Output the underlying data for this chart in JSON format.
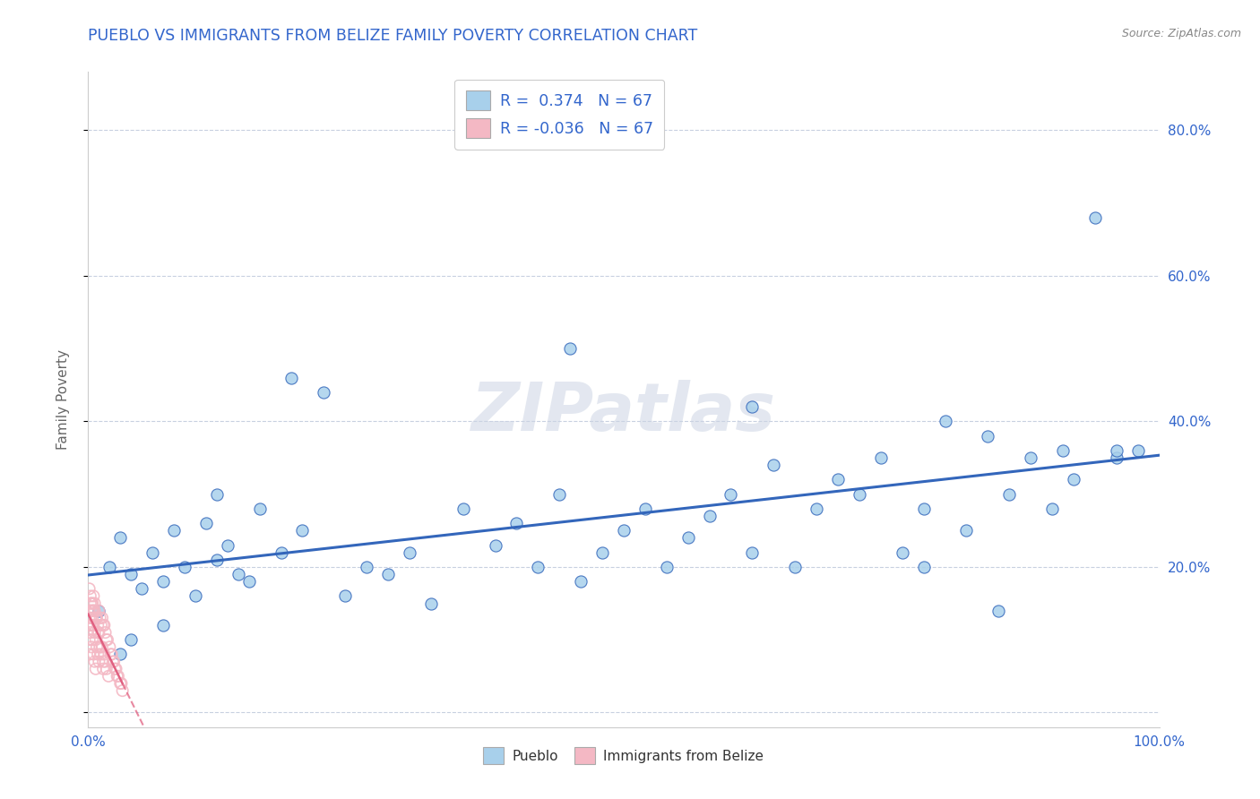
{
  "title": "PUEBLO VS IMMIGRANTS FROM BELIZE FAMILY POVERTY CORRELATION CHART",
  "source": "Source: ZipAtlas.com",
  "ylabel": "Family Poverty",
  "y_ticks": [
    0.0,
    0.2,
    0.4,
    0.6,
    0.8
  ],
  "y_tick_labels_right": [
    "",
    "20.0%",
    "40.0%",
    "60.0%",
    "80.0%"
  ],
  "legend_label1": "Pueblo",
  "legend_label2": "Immigrants from Belize",
  "color_pueblo": "#a8d0eb",
  "color_belize": "#f4b8c4",
  "color_pueblo_line": "#3366bb",
  "color_belize_line": "#e06080",
  "r_pueblo": 0.374,
  "r_belize": -0.036,
  "n": 67,
  "background_color": "#ffffff",
  "pueblo_x": [
    0.01,
    0.02,
    0.03,
    0.04,
    0.04,
    0.05,
    0.06,
    0.07,
    0.08,
    0.09,
    0.1,
    0.11,
    0.12,
    0.13,
    0.14,
    0.15,
    0.16,
    0.18,
    0.2,
    0.22,
    0.24,
    0.26,
    0.28,
    0.3,
    0.32,
    0.35,
    0.38,
    0.4,
    0.42,
    0.44,
    0.46,
    0.48,
    0.5,
    0.52,
    0.54,
    0.56,
    0.58,
    0.6,
    0.62,
    0.64,
    0.66,
    0.68,
    0.7,
    0.72,
    0.74,
    0.76,
    0.78,
    0.8,
    0.82,
    0.84,
    0.86,
    0.88,
    0.9,
    0.92,
    0.94,
    0.96,
    0.98,
    0.03,
    0.07,
    0.12,
    0.19,
    0.45,
    0.62,
    0.78,
    0.85,
    0.91,
    0.96
  ],
  "pueblo_y": [
    0.14,
    0.2,
    0.24,
    0.19,
    0.1,
    0.17,
    0.22,
    0.18,
    0.25,
    0.2,
    0.16,
    0.26,
    0.21,
    0.23,
    0.19,
    0.18,
    0.28,
    0.22,
    0.25,
    0.44,
    0.16,
    0.2,
    0.19,
    0.22,
    0.15,
    0.28,
    0.23,
    0.26,
    0.2,
    0.3,
    0.18,
    0.22,
    0.25,
    0.28,
    0.2,
    0.24,
    0.27,
    0.3,
    0.22,
    0.34,
    0.2,
    0.28,
    0.32,
    0.3,
    0.35,
    0.22,
    0.28,
    0.4,
    0.25,
    0.38,
    0.3,
    0.35,
    0.28,
    0.32,
    0.68,
    0.35,
    0.36,
    0.08,
    0.12,
    0.3,
    0.46,
    0.5,
    0.42,
    0.2,
    0.14,
    0.36,
    0.36
  ],
  "belize_x": [
    0.001,
    0.001,
    0.001,
    0.001,
    0.002,
    0.002,
    0.002,
    0.003,
    0.003,
    0.003,
    0.004,
    0.004,
    0.004,
    0.005,
    0.005,
    0.005,
    0.006,
    0.006,
    0.006,
    0.007,
    0.007,
    0.007,
    0.008,
    0.008,
    0.009,
    0.009,
    0.01,
    0.01,
    0.01,
    0.011,
    0.011,
    0.012,
    0.012,
    0.013,
    0.013,
    0.014,
    0.014,
    0.015,
    0.015,
    0.016,
    0.016,
    0.017,
    0.017,
    0.018,
    0.019,
    0.02,
    0.021,
    0.022,
    0.023,
    0.024,
    0.025,
    0.026,
    0.027,
    0.028,
    0.03,
    0.031,
    0.032,
    0.001,
    0.002,
    0.003,
    0.004,
    0.005,
    0.006,
    0.007,
    0.009,
    0.011,
    0.014
  ],
  "belize_y": [
    0.14,
    0.12,
    0.1,
    0.08,
    0.15,
    0.13,
    0.11,
    0.14,
    0.12,
    0.09,
    0.15,
    0.13,
    0.1,
    0.14,
    0.12,
    0.08,
    0.14,
    0.11,
    0.07,
    0.13,
    0.1,
    0.06,
    0.13,
    0.09,
    0.12,
    0.08,
    0.14,
    0.11,
    0.07,
    0.13,
    0.09,
    0.12,
    0.08,
    0.13,
    0.09,
    0.12,
    0.07,
    0.12,
    0.08,
    0.11,
    0.07,
    0.1,
    0.06,
    0.1,
    0.05,
    0.09,
    0.08,
    0.08,
    0.07,
    0.07,
    0.06,
    0.06,
    0.05,
    0.05,
    0.04,
    0.04,
    0.03,
    0.17,
    0.16,
    0.15,
    0.14,
    0.16,
    0.15,
    0.13,
    0.11,
    0.09,
    0.06
  ]
}
